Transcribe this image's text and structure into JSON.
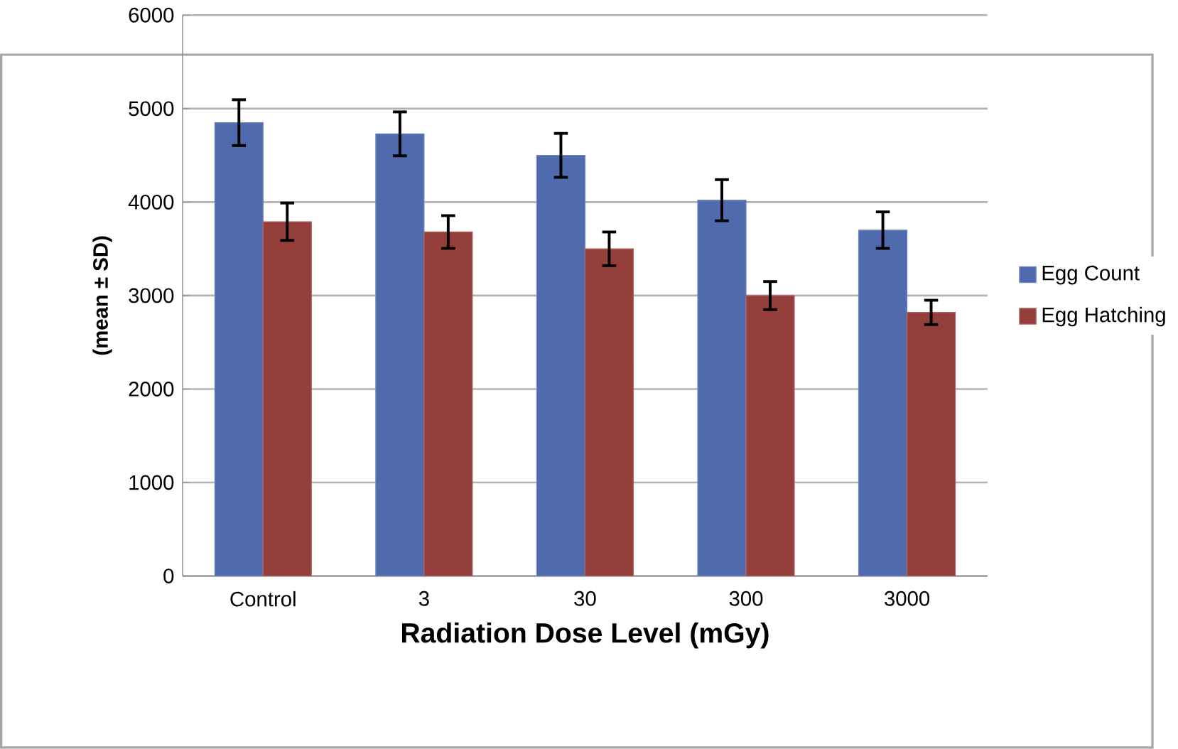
{
  "chart_data": {
    "type": "bar",
    "xlabel": "Radiation Dose Level (mGy)",
    "ylabel": "(mean ± SD)",
    "categories": [
      "Control",
      "3",
      "30",
      "300",
      "3000"
    ],
    "series": [
      {
        "name": "Egg Count",
        "color": "#4f6aad",
        "values": [
          4850,
          4730,
          4500,
          4020,
          3700
        ],
        "errors": [
          245,
          235,
          235,
          220,
          195
        ]
      },
      {
        "name": "Egg Hatching",
        "color": "#953f3c",
        "values": [
          3790,
          3680,
          3500,
          3000,
          2820
        ],
        "errors": [
          200,
          175,
          180,
          150,
          130
        ]
      }
    ],
    "ylim": [
      0,
      6000
    ],
    "yticks": [
      0,
      1000,
      2000,
      3000,
      4000,
      5000,
      6000
    ],
    "grid": "y",
    "legend": "right"
  }
}
